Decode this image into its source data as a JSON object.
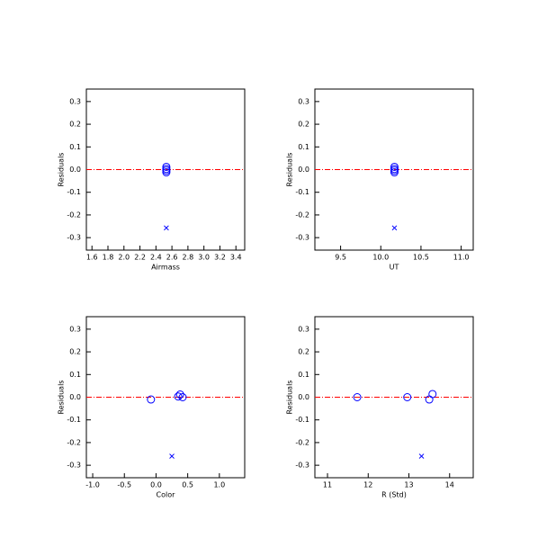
{
  "chart_data": [
    {
      "type": "scatter",
      "xlabel": "Airmass",
      "ylabel": "Residuals",
      "xlim": [
        1.53,
        3.51
      ],
      "ylim": [
        -0.355,
        0.355
      ],
      "xticks": [
        1.6,
        1.8,
        {
          "value": 2,
          "label": "2.0"
        },
        2.2,
        2.4,
        2.6,
        2.8,
        {
          "value": 3,
          "label": "3.0"
        },
        3.2,
        3.4
      ],
      "yticks": [
        -0.3,
        -0.2,
        -0.1,
        {
          "value": 0,
          "label": "0.0"
        },
        0.1,
        0.2,
        0.3
      ],
      "reference_line": {
        "y": 0,
        "color": "#ff0000"
      },
      "series": [
        {
          "marker": "circle",
          "color": "#0000ff",
          "x": [
            2.53,
            2.53,
            2.53,
            2.53
          ],
          "values": [
            0.012,
            0.003,
            -0.004,
            -0.012
          ]
        },
        {
          "marker": "cross",
          "color": "#0000ff",
          "x": [
            2.53
          ],
          "values": [
            -0.257
          ]
        }
      ]
    },
    {
      "type": "scatter",
      "xlabel": "UT",
      "ylabel": "Residuals",
      "xlim": [
        9.18,
        11.15
      ],
      "ylim": [
        -0.355,
        0.355
      ],
      "xticks": [
        9.5,
        {
          "value": 10,
          "label": "10.0"
        },
        10.5,
        {
          "value": 11,
          "label": "11.0"
        }
      ],
      "yticks": [
        -0.3,
        -0.2,
        -0.1,
        {
          "value": 0,
          "label": "0.0"
        },
        0.1,
        0.2,
        0.3
      ],
      "reference_line": {
        "y": 0,
        "color": "#ff0000"
      },
      "series": [
        {
          "marker": "circle",
          "color": "#0000ff",
          "x": [
            10.17,
            10.17,
            10.17,
            10.17
          ],
          "values": [
            0.012,
            0.003,
            -0.004,
            -0.012
          ]
        },
        {
          "marker": "cross",
          "color": "#0000ff",
          "x": [
            10.17
          ],
          "values": [
            -0.257
          ]
        }
      ]
    },
    {
      "type": "scatter",
      "xlabel": "Color",
      "ylabel": "Residuals",
      "xlim": [
        -1.1,
        1.4
      ],
      "ylim": [
        -0.355,
        0.355
      ],
      "xticks": [
        {
          "value": -1,
          "label": "-1.0"
        },
        -0.5,
        {
          "value": 0,
          "label": "0.0"
        },
        0.5,
        {
          "value": 1,
          "label": "1.0"
        }
      ],
      "yticks": [
        -0.3,
        -0.2,
        -0.1,
        {
          "value": 0,
          "label": "0.0"
        },
        0.1,
        0.2,
        0.3
      ],
      "reference_line": {
        "y": 0,
        "color": "#ff0000"
      },
      "series": [
        {
          "marker": "circle",
          "color": "#0000ff",
          "x": [
            -0.08,
            0.35,
            0.38,
            0.42
          ],
          "values": [
            -0.01,
            0.003,
            0.012,
            0.0
          ]
        },
        {
          "marker": "cross",
          "color": "#0000ff",
          "x": [
            0.25
          ],
          "values": [
            -0.26
          ]
        }
      ]
    },
    {
      "type": "scatter",
      "xlabel": "R (Std)",
      "ylabel": "Residuals",
      "xlim": [
        10.69,
        14.58
      ],
      "ylim": [
        -0.355,
        0.355
      ],
      "xticks": [
        11,
        12,
        13,
        14
      ],
      "yticks": [
        -0.3,
        -0.2,
        -0.1,
        {
          "value": 0,
          "label": "0.0"
        },
        0.1,
        0.2,
        0.3
      ],
      "reference_line": {
        "y": 0,
        "color": "#ff0000"
      },
      "series": [
        {
          "marker": "circle",
          "color": "#0000ff",
          "x": [
            11.73,
            12.96,
            13.5,
            13.58
          ],
          "values": [
            0.0,
            0.0,
            -0.01,
            0.014
          ]
        },
        {
          "marker": "cross",
          "color": "#0000ff",
          "x": [
            13.31
          ],
          "values": [
            -0.26
          ]
        }
      ]
    }
  ]
}
